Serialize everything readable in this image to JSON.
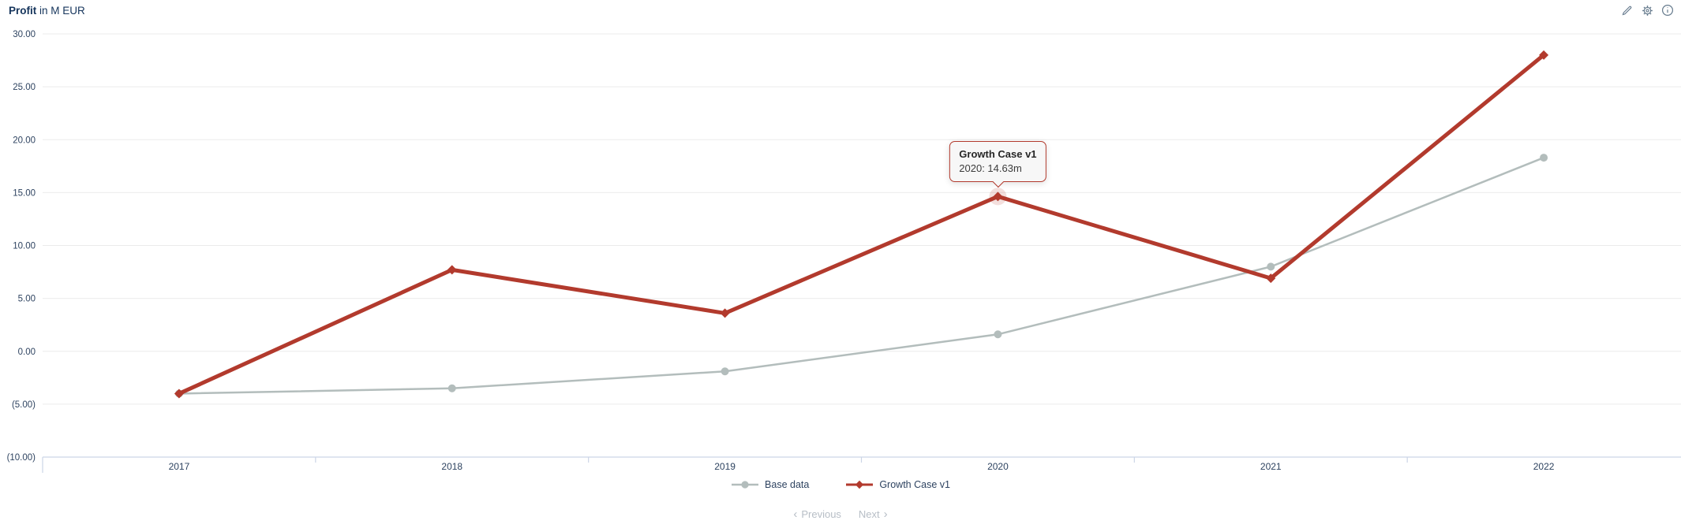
{
  "header": {
    "title_bold": "Profit",
    "title_rest": " in M EUR",
    "icons": [
      {
        "name": "edit"
      },
      {
        "name": "settings"
      },
      {
        "name": "info"
      }
    ]
  },
  "chart_data": {
    "type": "line",
    "title": "Profit in M EUR",
    "categories": [
      "2017",
      "2018",
      "2019",
      "2020",
      "2021",
      "2022"
    ],
    "series": [
      {
        "name": "Base data",
        "color": "#b3bdbc",
        "marker": "circle",
        "values": [
          -4.0,
          -3.5,
          -1.9,
          1.6,
          8.0,
          18.3
        ]
      },
      {
        "name": "Growth Case v1",
        "color": "#b23a2d",
        "marker": "diamond",
        "values": [
          -4.0,
          7.7,
          3.6,
          14.63,
          6.9,
          28.0
        ]
      }
    ],
    "ylim": [
      -10,
      30
    ],
    "y_tick_step": 5,
    "y_tick_labels": [
      "30.00",
      "25.00",
      "20.00",
      "15.00",
      "10.00",
      "5.00",
      "0.00",
      "(5.00)",
      "(10.00)"
    ],
    "grid": true,
    "legend_position": "bottom"
  },
  "tooltip": {
    "series": "Growth Case v1",
    "label": "2020: 14.63m",
    "category_index": 3,
    "value": 14.63
  },
  "footer": {
    "previous": "Previous",
    "next": "Next",
    "prev_chevron": "‹",
    "next_chevron": "›"
  },
  "colors": {
    "title_text": "#16355c",
    "axis_text": "#2e4360",
    "grid_line": "#ebebeb",
    "axis_line": "#ccd5e6",
    "icon": "#64798c",
    "disabled_text": "#b7bec6",
    "tooltip_bg": "#f7f7f7",
    "tooltip_border": "#b23a2d",
    "halo": "rgba(178,58,45,0.16)"
  }
}
